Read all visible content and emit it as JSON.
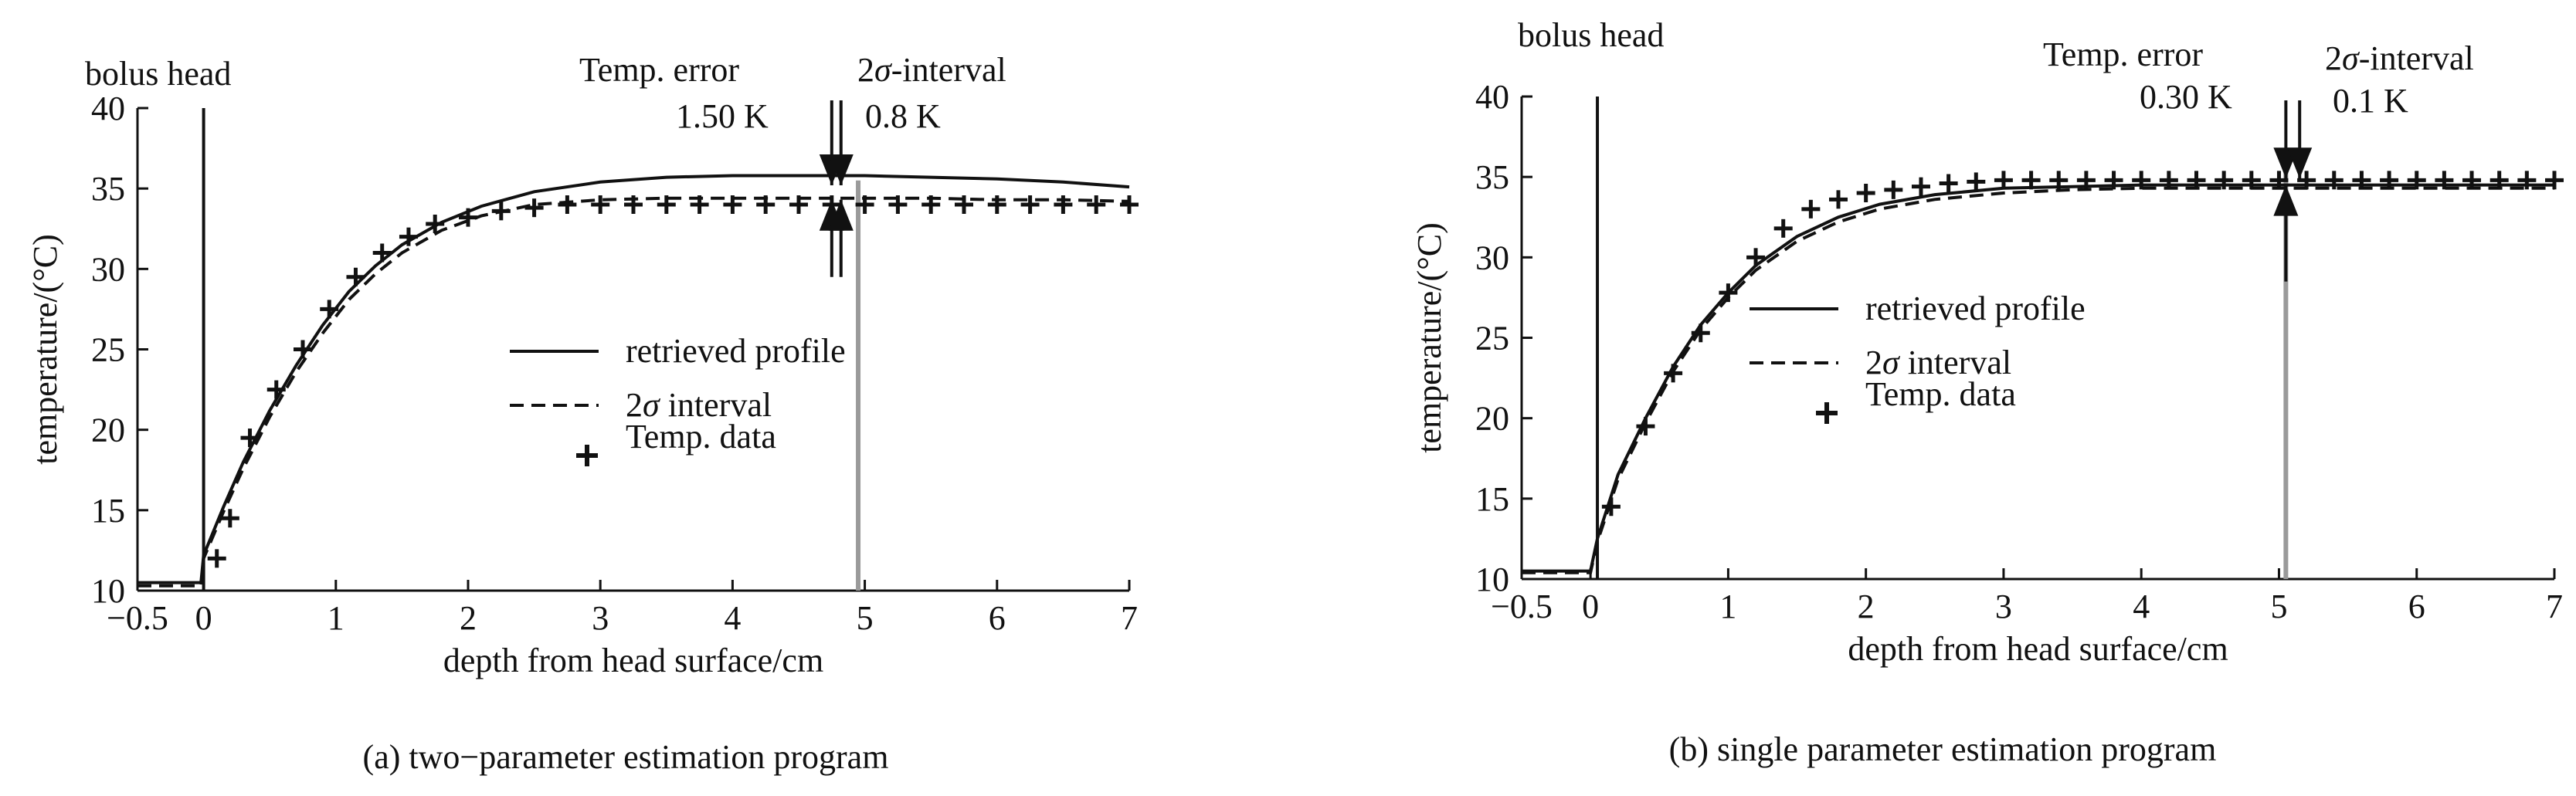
{
  "panels": [
    {
      "caption": "(a) two−parameter estimation program",
      "bolus_label": "bolus head",
      "temp_error_label": "Temp. error",
      "temp_error_value": "1.50 K",
      "interval_label_prefix": "2",
      "interval_label_sigma": "σ",
      "interval_label_suffix": "-interval",
      "interval_value": "0.8 K"
    },
    {
      "caption": "(b) single parameter estimation program",
      "bolus_label": "bolus head",
      "temp_error_label": "Temp. error",
      "temp_error_value": "0.30 K",
      "interval_label_prefix": "2",
      "interval_label_sigma": "σ",
      "interval_label_suffix": "-interval",
      "interval_value": "0.1 K"
    }
  ],
  "colors": {
    "line": "#111111",
    "marker_line": "#9a9a9a"
  },
  "chart_data": [
    {
      "type": "line",
      "xlabel": "depth from head surface/cm",
      "ylabel": "temperature/(°C)",
      "xlim": [
        -0.5,
        7
      ],
      "ylim": [
        10,
        40
      ],
      "xticks": [
        -0.5,
        0,
        1,
        2,
        3,
        4,
        5,
        6,
        7
      ],
      "xtick_labels": [
        "−0.5",
        "0",
        "1",
        "2",
        "3",
        "4",
        "5",
        "6",
        "7"
      ],
      "yticks": [
        10,
        15,
        20,
        25,
        30,
        35,
        40
      ],
      "ytick_labels": [
        "10",
        "15",
        "20",
        "25",
        "30",
        "35",
        "40"
      ],
      "legend": [
        "retrieved profile",
        "2σ interval",
        "Temp. data"
      ],
      "legend_position": "center-right",
      "grid": false,
      "bolus_head_x": 0,
      "marker_line_x": 4.95,
      "temp_error_arrow_x": 4.75,
      "interval_arrow_x": 4.82,
      "series": [
        {
          "style": "solid",
          "x": [
            -0.5,
            -0.02,
            0,
            0.15,
            0.3,
            0.5,
            0.7,
            0.9,
            1.1,
            1.3,
            1.5,
            1.8,
            2.1,
            2.5,
            3,
            3.5,
            4,
            4.5,
            5,
            5.5,
            6,
            6.5,
            7
          ],
          "y": [
            10.5,
            10.5,
            12.2,
            15.2,
            18.0,
            21.2,
            24.0,
            26.5,
            28.6,
            30.2,
            31.5,
            32.9,
            33.9,
            34.8,
            35.4,
            35.7,
            35.8,
            35.8,
            35.8,
            35.7,
            35.6,
            35.4,
            35.1
          ]
        },
        {
          "style": "dashed",
          "x": [
            -0.5,
            -0.02,
            0,
            0.15,
            0.3,
            0.5,
            0.7,
            0.9,
            1.1,
            1.3,
            1.5,
            1.8,
            2.1,
            2.5,
            3,
            3.5,
            4,
            4.5,
            5,
            5.5,
            6,
            6.5,
            7
          ],
          "y": [
            10.3,
            10.3,
            12.0,
            14.9,
            17.6,
            20.8,
            23.6,
            26.0,
            28.1,
            29.7,
            31.0,
            32.4,
            33.3,
            34.0,
            34.3,
            34.4,
            34.4,
            34.4,
            34.4,
            34.4,
            34.3,
            34.3,
            34.2
          ]
        },
        {
          "style": "plus",
          "x": [
            0.1,
            0.2,
            0.35,
            0.55,
            0.75,
            0.95,
            1.15,
            1.35,
            1.55,
            1.75,
            2.0,
            2.25,
            2.5,
            2.75,
            3.0,
            3.25,
            3.5,
            3.75,
            4.0,
            4.25,
            4.5,
            4.75,
            5.0,
            5.25,
            5.5,
            5.75,
            6.0,
            6.25,
            6.5,
            6.75,
            7.0
          ],
          "y": [
            12.0,
            14.5,
            19.5,
            22.5,
            25.0,
            27.5,
            29.5,
            31.0,
            32.0,
            32.8,
            33.2,
            33.6,
            33.8,
            34.0,
            34.0,
            34.0,
            34.0,
            34.0,
            34.0,
            34.0,
            34.0,
            34.0,
            34.0,
            34.0,
            34.0,
            34.0,
            34.0,
            34.0,
            34.0,
            34.0,
            34.0
          ]
        }
      ]
    },
    {
      "type": "line",
      "xlabel": "depth from head surface/cm",
      "ylabel": "temperature/(°C)",
      "xlim": [
        -0.5,
        7
      ],
      "ylim": [
        10,
        40
      ],
      "xticks": [
        -0.5,
        0,
        1,
        2,
        3,
        4,
        5,
        6,
        7
      ],
      "xtick_labels": [
        "−0.5",
        "0",
        "1",
        "2",
        "3",
        "4",
        "5",
        "6",
        "7"
      ],
      "yticks": [
        10,
        15,
        20,
        25,
        30,
        35,
        40
      ],
      "ytick_labels": [
        "10",
        "15",
        "20",
        "25",
        "30",
        "35",
        "40"
      ],
      "legend": [
        "retrieved profile",
        "2σ interval",
        "Temp. data"
      ],
      "legend_position": "center-right",
      "grid": false,
      "bolus_head_x": 0.05,
      "marker_line_x": 5.05,
      "temp_error_arrow_x": 5.05,
      "interval_arrow_x": 5.15,
      "series": [
        {
          "style": "solid",
          "x": [
            -0.5,
            0,
            0.05,
            0.2,
            0.4,
            0.6,
            0.8,
            1.0,
            1.2,
            1.5,
            1.8,
            2.1,
            2.5,
            3,
            3.5,
            4,
            4.5,
            5,
            5.5,
            6,
            6.5,
            7
          ],
          "y": [
            10.5,
            10.5,
            12.5,
            16.5,
            20.0,
            23.2,
            25.8,
            27.8,
            29.5,
            31.3,
            32.5,
            33.3,
            33.9,
            34.3,
            34.4,
            34.5,
            34.5,
            34.5,
            34.5,
            34.5,
            34.5,
            34.5
          ]
        },
        {
          "style": "dashed",
          "x": [
            -0.5,
            0,
            0.05,
            0.2,
            0.4,
            0.6,
            0.8,
            1.0,
            1.2,
            1.5,
            1.8,
            2.1,
            2.5,
            3,
            3.5,
            4,
            4.5,
            5,
            5.5,
            6,
            6.5,
            7
          ],
          "y": [
            10.4,
            10.4,
            12.3,
            16.2,
            19.7,
            22.9,
            25.5,
            27.5,
            29.2,
            31.0,
            32.2,
            33.0,
            33.6,
            34.0,
            34.2,
            34.3,
            34.3,
            34.3,
            34.3,
            34.3,
            34.3,
            34.3
          ]
        },
        {
          "style": "plus",
          "x": [
            0.15,
            0.4,
            0.6,
            0.8,
            1.0,
            1.2,
            1.4,
            1.6,
            1.8,
            2.0,
            2.2,
            2.4,
            2.6,
            2.8,
            3.0,
            3.2,
            3.4,
            3.6,
            3.8,
            4.0,
            4.2,
            4.4,
            4.6,
            4.8,
            5.0,
            5.2,
            5.4,
            5.6,
            5.8,
            6.0,
            6.2,
            6.4,
            6.6,
            6.8,
            7.0
          ],
          "y": [
            14.5,
            19.5,
            22.8,
            25.3,
            27.8,
            30.0,
            31.8,
            33.0,
            33.6,
            34.0,
            34.2,
            34.4,
            34.6,
            34.7,
            34.8,
            34.8,
            34.8,
            34.8,
            34.8,
            34.8,
            34.8,
            34.8,
            34.8,
            34.8,
            34.8,
            34.8,
            34.8,
            34.8,
            34.8,
            34.8,
            34.8,
            34.8,
            34.8,
            34.8,
            34.8
          ]
        }
      ]
    }
  ]
}
